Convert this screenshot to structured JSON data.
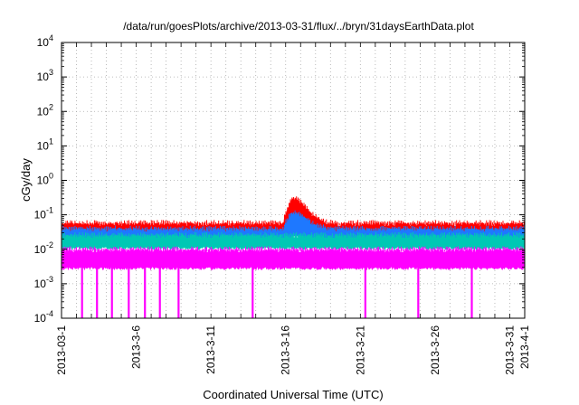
{
  "chart_data": {
    "type": "line",
    "title": "/data/run/goesPlots/archive/2013-03-31/flux/../bryn/31daysEarthData.plot",
    "xlabel": "Coordinated Universal Time (UTC)",
    "ylabel": "cGy/day",
    "y_scale": "log",
    "ylim": [
      0.0001,
      10000
    ],
    "y_ticks": [
      {
        "base": "10",
        "exp": "-4",
        "value": 0.0001
      },
      {
        "base": "10",
        "exp": "-3",
        "value": 0.001
      },
      {
        "base": "10",
        "exp": "-2",
        "value": 0.01
      },
      {
        "base": "10",
        "exp": "-1",
        "value": 0.1
      },
      {
        "base": "10",
        "exp": "0",
        "value": 1
      },
      {
        "base": "10",
        "exp": "1",
        "value": 10
      },
      {
        "base": "10",
        "exp": "2",
        "value": 100
      },
      {
        "base": "10",
        "exp": "3",
        "value": 1000
      },
      {
        "base": "10",
        "exp": "4",
        "value": 10000
      }
    ],
    "xlim": [
      "2013-03-01",
      "2013-04-01"
    ],
    "x_ticks": [
      {
        "label": "2013-03-1",
        "date": "2013-03-01"
      },
      {
        "label": "2013-3-6",
        "date": "2013-03-06"
      },
      {
        "label": "2013-3-11",
        "date": "2013-03-11"
      },
      {
        "label": "2013-3-16",
        "date": "2013-03-16"
      },
      {
        "label": "2013-3-21",
        "date": "2013-03-21"
      },
      {
        "label": "2013-3-26",
        "date": "2013-03-26"
      },
      {
        "label": "2013-3-31",
        "date": "2013-03-31"
      },
      {
        "label": "2013-4-1",
        "date": "2013-04-01"
      }
    ],
    "grid": true,
    "series": [
      {
        "color": "#ff0000",
        "values_approx": {
          "baseline": 0.042,
          "peak_date": "2013-03-16T12:00",
          "peak_value": 0.22
        }
      },
      {
        "color": "#1e78ff",
        "values_approx": {
          "baseline": 0.03,
          "peak_date": "2013-03-16T12:00",
          "peak_value": 0.09
        }
      },
      {
        "color": "#00c8b4",
        "values_approx": {
          "baseline": 0.018
        }
      },
      {
        "color": "#ff00ff",
        "values_approx": {
          "baseline": 0.006,
          "drop_min": 0.0001
        }
      }
    ],
    "magenta_dropout_dates": [
      "2013-03-02T09:00",
      "2013-03-03T09:00",
      "2013-03-04T09:00",
      "2013-03-05T12:00",
      "2013-03-06T14:00",
      "2013-03-07T14:00",
      "2013-03-08T20:00",
      "2013-03-13T19:00",
      "2013-03-21T08:00",
      "2013-03-24T21:00",
      "2013-03-28T11:00"
    ]
  }
}
